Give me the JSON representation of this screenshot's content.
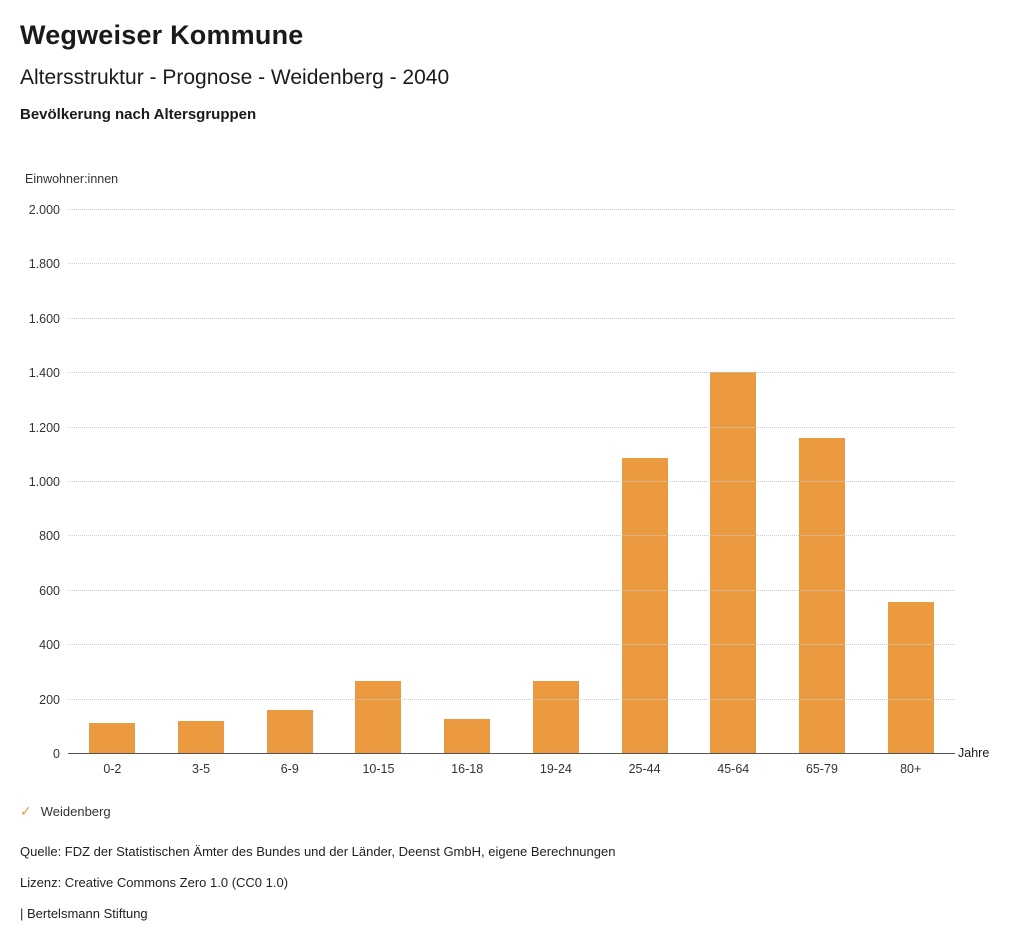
{
  "header": {
    "title": "Wegweiser Kommune",
    "subtitle": "Altersstruktur - Prognose - Weidenberg - 2040",
    "section_title": "Bevölkerung nach Altersgruppen"
  },
  "chart_data": {
    "type": "bar",
    "title": "Bevölkerung nach Altersgruppen",
    "ylabel": "Einwohner:innen",
    "xlabel": "Jahre",
    "categories": [
      "0-2",
      "3-5",
      "6-9",
      "10-15",
      "16-18",
      "19-24",
      "25-44",
      "45-64",
      "65-79",
      "80+"
    ],
    "series": [
      {
        "name": "Weidenberg",
        "values": [
          115,
          120,
          160,
          270,
          130,
          270,
          1090,
          1405,
          1160,
          560
        ]
      }
    ],
    "ylim": [
      0,
      2000
    ],
    "ytick_step": 200,
    "ytick_labels": [
      "0",
      "200",
      "400",
      "600",
      "800",
      "1.000",
      "1.200",
      "1.400",
      "1.600",
      "1.800",
      "2.000"
    ],
    "grid": true,
    "gridline_style": "dotted",
    "bar_color": "#EC9A3F",
    "legend_position": "bottom-left"
  },
  "legend": {
    "check_icon": "✓",
    "label": "Weidenberg",
    "color": "#EC9A3F"
  },
  "footer": {
    "source": "Quelle: FDZ der Statistischen Ämter des Bundes und der Länder, Deenst GmbH, eigene Berechnungen",
    "license": "Lizenz: Creative Commons Zero 1.0 (CC0 1.0)",
    "attribution": "| Bertelsmann Stiftung"
  }
}
